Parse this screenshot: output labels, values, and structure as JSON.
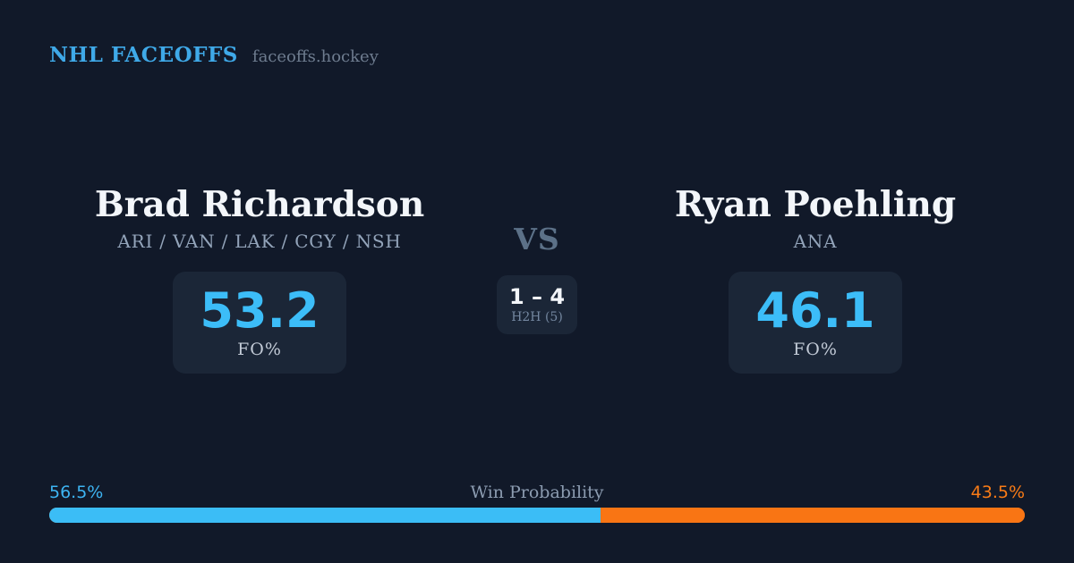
{
  "brand": {
    "title": "NHL FACEOFFS",
    "domain": "faceoffs.hockey"
  },
  "matchup": {
    "vs_label": "VS",
    "player_left": {
      "name": "Brad Richardson",
      "teams": "ARI / VAN / LAK / CGY / NSH",
      "fo_value": "53.2",
      "fo_label": "FO%"
    },
    "player_right": {
      "name": "Ryan Poehling",
      "teams": "ANA",
      "fo_value": "46.1",
      "fo_label": "FO%"
    },
    "h2h": {
      "score": "1 – 4",
      "label": "H2H (5)"
    }
  },
  "win_probability": {
    "label": "Win Probability",
    "left_pct": "56.5%",
    "right_pct": "43.5%",
    "left_value": 56.5,
    "right_value": 43.5,
    "left_bar_style": "width:56.5%"
  },
  "colors": {
    "background": "#111929",
    "card_background": "#1B2637",
    "brand_blue": "#3FA9E8",
    "stat_blue": "#3CBDF8",
    "bar_blue": "#3BBDF6",
    "bar_orange": "#F97514",
    "pct_orange": "#F97B16",
    "name_white": "#F3F6FA",
    "teams_slate": "#93A4BA",
    "vs_slate": "#5C7188"
  },
  "chart_data": {
    "type": "bar",
    "title": "Win Probability",
    "categories": [
      "Brad Richardson",
      "Ryan Poehling"
    ],
    "series": [
      {
        "name": "Win Probability %",
        "values": [
          56.5,
          43.5
        ]
      },
      {
        "name": "Faceoff %",
        "values": [
          53.2,
          46.1
        ]
      },
      {
        "name": "H2H wins (of 5 meetings)",
        "values": [
          1,
          4
        ]
      }
    ],
    "xlabel": "",
    "ylabel": "",
    "ylim": [
      0,
      100
    ],
    "legend_position": "none",
    "grid": false,
    "layout": "single horizontal stacked probability bar, blue=left player, orange=right player"
  }
}
